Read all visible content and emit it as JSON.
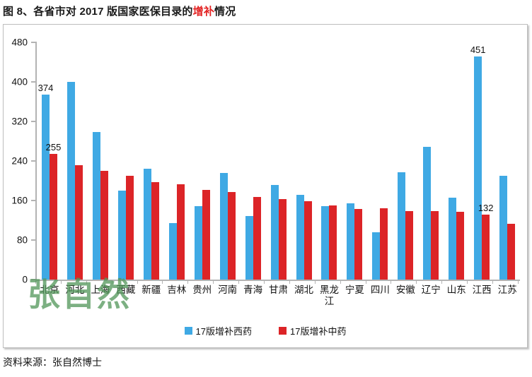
{
  "header": {
    "title_prefix": "图 8、各省市对 2017 版国家医保目录的",
    "title_highlight": "增补",
    "title_suffix": "情况"
  },
  "source": "资料来源：张自然博士",
  "watermark": "张自然",
  "colors": {
    "western_series": "#3FA9E4",
    "tcm_series": "#DC2427",
    "title_highlight": "#E32222",
    "axis": "#B3B3B3",
    "watermark": "rgba(80,150,88,0.75)"
  },
  "legend": {
    "items": [
      {
        "label": "17版增补西药",
        "color": "#3FA9E4"
      },
      {
        "label": "17版增补中药",
        "color": "#DC2427"
      }
    ]
  },
  "chart_data": {
    "type": "bar",
    "title": "图 8、各省市对 2017 版国家医保目录的增补情况",
    "categories": [
      "北京",
      "河北",
      "上海",
      "西藏",
      "新疆",
      "吉林",
      "贵州",
      "河南",
      "青海",
      "甘肃",
      "湖北",
      "黑龙江",
      "宁夏",
      "四川",
      "安徽",
      "辽宁",
      "山东",
      "江西",
      "江苏"
    ],
    "series": [
      {
        "name": "17版增补西药",
        "color": "#3FA9E4",
        "values": [
          374,
          400,
          299,
          180,
          224,
          115,
          149,
          216,
          129,
          192,
          172,
          148,
          154,
          96,
          217,
          269,
          166,
          451,
          210
        ]
      },
      {
        "name": "17版增补中药",
        "color": "#DC2427",
        "values": [
          255,
          232,
          220,
          210,
          197,
          193,
          181,
          177,
          167,
          163,
          158,
          150,
          143,
          144,
          138,
          138,
          137,
          132,
          113
        ]
      }
    ],
    "data_labels_shown_for": [
      "北京",
      "江西"
    ],
    "yticks": [
      0,
      80,
      160,
      240,
      320,
      400,
      480
    ],
    "ylim": [
      0,
      480
    ],
    "xlabel": "",
    "ylabel": "",
    "grid": false,
    "legend_position": "bottom-center"
  }
}
